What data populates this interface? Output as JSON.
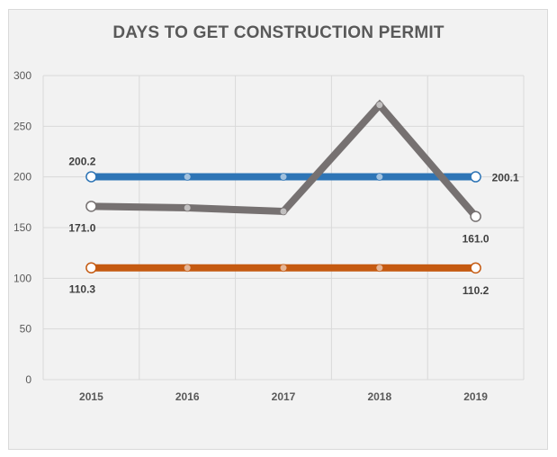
{
  "chart_data": {
    "type": "line",
    "title": "DAYS TO GET CONSTRUCTION PERMIT",
    "xlabel": "",
    "ylabel": "",
    "categories": [
      "2015",
      "2016",
      "2017",
      "2018",
      "2019"
    ],
    "ylim": [
      0,
      300
    ],
    "yticks": [
      0,
      50,
      100,
      150,
      200,
      250,
      300
    ],
    "grid": true,
    "legend": "none",
    "series": [
      {
        "color": "#2e75b6",
        "values": [
          200.2,
          200.1,
          200.1,
          200.1,
          200.1
        ],
        "data_labels": [
          "200.2",
          null,
          null,
          null,
          "200.1"
        ]
      },
      {
        "color": "#767171",
        "values": [
          171.0,
          169.5,
          166.0,
          271.0,
          161.0
        ],
        "data_labels": [
          "171.0",
          null,
          null,
          null,
          "161.0"
        ]
      },
      {
        "color": "#c55a11",
        "values": [
          110.3,
          110.3,
          110.3,
          110.3,
          110.2
        ],
        "data_labels": [
          "110.3",
          null,
          null,
          null,
          "110.2"
        ]
      }
    ]
  }
}
